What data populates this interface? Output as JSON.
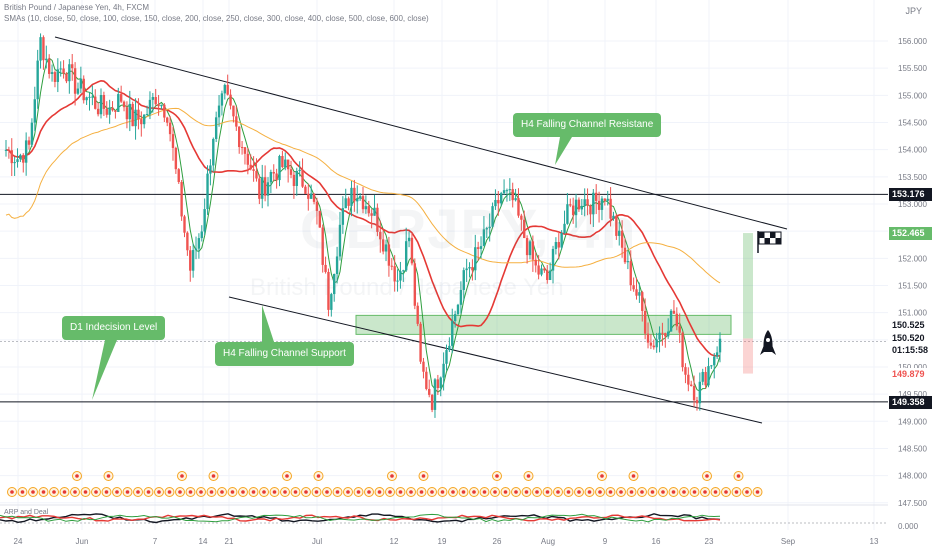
{
  "header": {
    "symbol_line": "British Pound / Japanese Yen, 4h, FXCM",
    "indicator_line": "SMAs (10, close, 50, close, 100, close, 150, close, 200, close, 250, close, 300, close, 400, close, 500, close, 600, close)",
    "currency": "JPY",
    "watermark_symbol": "GBPJPY, 4h",
    "watermark_name": "British Pound / Japanese Yen",
    "osc_label": "ARP and Deal"
  },
  "colors": {
    "up": "#26a69a",
    "down": "#ef5350",
    "sma_fast": "#2e9e3e",
    "sma_mid": "#e53935",
    "sma_slow": "#f5b041",
    "zone": "#66bb6a",
    "callout": "#66bb6a",
    "axis_text": "#787b86",
    "level_line": "#131722"
  },
  "annotations": {
    "resistance_label": "H4 Falling Channel Resistane",
    "support_label": "H4 Falling Channel Support",
    "d1_label": "D1 Indecision Level",
    "rocket_icon": "rocket-icon",
    "flag_icon": "checkered-flag-icon"
  },
  "price_tags": [
    {
      "label": "153.176",
      "value": 153.176,
      "bg": "#131722",
      "fg": "#ffffff"
    },
    {
      "label": "152.465",
      "value": 152.465,
      "bg": "#66bb6a",
      "fg": "#ffffff"
    },
    {
      "label": "150.525",
      "value": 150.525,
      "bg": "#ffffff",
      "fg": "#131722"
    },
    {
      "label": "150.520",
      "value": 150.52,
      "bg": "#ffffff",
      "fg": "#131722"
    },
    {
      "label": "01:15:58",
      "value": 150.3,
      "bg": "#ffffff",
      "fg": "#131722"
    },
    {
      "label": "149.879",
      "value": 149.879,
      "bg": "#ffffff",
      "fg": "#ef5350"
    },
    {
      "label": "149.358",
      "value": 149.358,
      "bg": "#131722",
      "fg": "#ffffff"
    }
  ],
  "chart_data": {
    "type": "candlestick",
    "title": "British Pound / Japanese Yen, 4h, FXCM",
    "ylim": [
      147.4,
      156.3
    ],
    "y_ticks": [
      "156.000",
      "155.500",
      "155.000",
      "154.500",
      "154.000",
      "153.500",
      "153.000",
      "152.500",
      "152.000",
      "151.500",
      "151.000",
      "150.500",
      "150.000",
      "149.500",
      "149.000",
      "148.500",
      "148.000",
      "147.500"
    ],
    "y_tick_values": [
      156.0,
      155.5,
      155.0,
      154.5,
      154.0,
      153.5,
      153.0,
      152.5,
      152.0,
      151.5,
      151.0,
      150.5,
      150.0,
      149.5,
      149.0,
      148.5,
      148.0,
      147.5
    ],
    "x_ticks": [
      "24",
      "Jun",
      "7",
      "14",
      "21",
      "Jul",
      "12",
      "19",
      "26",
      "Aug",
      "9",
      "16",
      "23",
      "Sep",
      "13"
    ],
    "x_tick_positions": [
      18,
      82,
      155,
      203,
      229,
      317,
      394,
      442,
      497,
      548,
      605,
      656,
      709,
      788,
      874
    ],
    "close_path": [
      [
        0,
        154.0
      ],
      [
        1,
        153.85
      ],
      [
        2,
        154.05
      ],
      [
        3,
        156.0
      ],
      [
        4,
        155.35
      ],
      [
        5,
        155.55
      ],
      [
        6,
        155.2
      ],
      [
        7,
        155.0
      ],
      [
        8,
        154.8
      ],
      [
        9,
        154.75
      ],
      [
        10,
        154.95
      ],
      [
        11,
        154.55
      ],
      [
        12,
        154.6
      ],
      [
        13,
        155.0
      ],
      [
        14,
        154.7
      ],
      [
        15,
        153.2
      ],
      [
        16,
        151.8
      ],
      [
        17,
        152.6
      ],
      [
        18,
        154.3
      ],
      [
        19,
        155.0
      ],
      [
        20,
        154.4
      ],
      [
        21,
        153.85
      ],
      [
        22,
        153.2
      ],
      [
        23,
        153.55
      ],
      [
        24,
        153.7
      ],
      [
        25,
        153.5
      ],
      [
        26,
        153.4
      ],
      [
        27,
        152.8
      ],
      [
        28,
        151.2
      ],
      [
        29,
        152.6
      ],
      [
        30,
        153.3
      ],
      [
        31,
        153.1
      ],
      [
        32,
        152.8
      ],
      [
        33,
        152.2
      ],
      [
        34,
        151.6
      ],
      [
        35,
        152.4
      ],
      [
        36,
        150.0
      ],
      [
        37,
        149.4
      ],
      [
        38,
        150.2
      ],
      [
        39,
        151.0
      ],
      [
        40,
        151.8
      ],
      [
        41,
        152.1
      ],
      [
        42,
        152.6
      ],
      [
        43,
        153.2
      ],
      [
        44,
        153.05
      ],
      [
        45,
        152.4
      ],
      [
        46,
        151.8
      ],
      [
        47,
        151.6
      ],
      [
        48,
        152.4
      ],
      [
        49,
        152.9
      ],
      [
        50,
        153.1
      ],
      [
        51,
        153.0
      ],
      [
        52,
        153.2
      ],
      [
        53,
        152.5
      ],
      [
        54,
        151.8
      ],
      [
        55,
        151.2
      ],
      [
        56,
        150.4
      ],
      [
        57,
        150.7
      ],
      [
        58,
        151.0
      ],
      [
        59,
        149.9
      ],
      [
        60,
        149.5
      ],
      [
        61,
        150.0
      ],
      [
        62,
        150.52
      ]
    ],
    "d1_level": 149.358,
    "resistance_level": 153.176,
    "zone": [
      150.6,
      150.95
    ],
    "target": 152.465,
    "stop": 149.879,
    "entry": 150.525
  }
}
